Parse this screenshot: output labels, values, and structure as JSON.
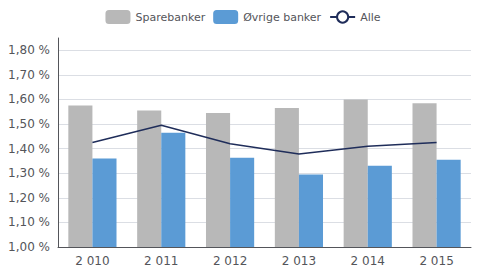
{
  "chart_data": {
    "type": "bar",
    "categories": [
      "2 010",
      "2 011",
      "2 012",
      "2 013",
      "2 014",
      "2 015"
    ],
    "series": [
      {
        "name": "Sparebanker",
        "type": "bar",
        "color": "#b8b8b8",
        "values": [
          1.575,
          1.555,
          1.545,
          1.565,
          1.6,
          1.585
        ]
      },
      {
        "name": "Øvrige banker",
        "type": "bar",
        "color": "#5b9bd5",
        "values": [
          1.36,
          1.465,
          1.363,
          1.295,
          1.33,
          1.355
        ]
      },
      {
        "name": "Alle",
        "type": "line",
        "color": "#1f2d5a",
        "marker": "none",
        "values": [
          1.425,
          1.495,
          1.42,
          1.378,
          1.41,
          1.425
        ]
      }
    ],
    "ylim": [
      1.0,
      1.85
    ],
    "yticks": [
      {
        "value": 1.0,
        "label": "1,00 %"
      },
      {
        "value": 1.1,
        "label": "1,10 %"
      },
      {
        "value": 1.2,
        "label": "1,20 %"
      },
      {
        "value": 1.3,
        "label": "1,30 %"
      },
      {
        "value": 1.4,
        "label": "1,40 %"
      },
      {
        "value": 1.5,
        "label": "1,50 %"
      },
      {
        "value": 1.6,
        "label": "1,60 %"
      },
      {
        "value": 1.7,
        "label": "1,70 %"
      },
      {
        "value": 1.8,
        "label": "1,80 %"
      }
    ],
    "grid": true,
    "legend": "top"
  }
}
